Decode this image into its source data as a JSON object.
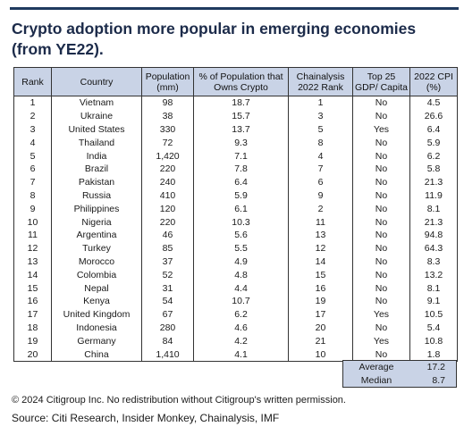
{
  "title": "Crypto adoption more popular in emerging economies (from YE22).",
  "table": {
    "headers": [
      "Rank",
      "Country",
      "Population (mm)",
      "% of Population that Owns Crypto",
      "Chainalysis 2022 Rank",
      "Top 25 GDP/ Capita",
      "2022 CPI (%)"
    ],
    "rows": [
      [
        "1",
        "Vietnam",
        "98",
        "18.7",
        "1",
        "No",
        "4.5"
      ],
      [
        "2",
        "Ukraine",
        "38",
        "15.7",
        "3",
        "No",
        "26.6"
      ],
      [
        "3",
        "United States",
        "330",
        "13.7",
        "5",
        "Yes",
        "6.4"
      ],
      [
        "4",
        "Thailand",
        "72",
        "9.3",
        "8",
        "No",
        "5.9"
      ],
      [
        "5",
        "India",
        "1,420",
        "7.1",
        "4",
        "No",
        "6.2"
      ],
      [
        "6",
        "Brazil",
        "220",
        "7.8",
        "7",
        "No",
        "5.8"
      ],
      [
        "7",
        "Pakistan",
        "240",
        "6.4",
        "6",
        "No",
        "21.3"
      ],
      [
        "8",
        "Russia",
        "410",
        "5.9",
        "9",
        "No",
        "11.9"
      ],
      [
        "9",
        "Philippines",
        "120",
        "6.1",
        "2",
        "No",
        "8.1"
      ],
      [
        "10",
        "Nigeria",
        "220",
        "10.3",
        "11",
        "No",
        "21.3"
      ],
      [
        "11",
        "Argentina",
        "46",
        "5.6",
        "13",
        "No",
        "94.8"
      ],
      [
        "12",
        "Turkey",
        "85",
        "5.5",
        "12",
        "No",
        "64.3"
      ],
      [
        "13",
        "Morocco",
        "37",
        "4.9",
        "14",
        "No",
        "8.3"
      ],
      [
        "14",
        "Colombia",
        "52",
        "4.8",
        "15",
        "No",
        "13.2"
      ],
      [
        "15",
        "Nepal",
        "31",
        "4.4",
        "16",
        "No",
        "8.1"
      ],
      [
        "16",
        "Kenya",
        "54",
        "10.7",
        "19",
        "No",
        "9.1"
      ],
      [
        "17",
        "United Kingdom",
        "67",
        "6.2",
        "17",
        "Yes",
        "10.5"
      ],
      [
        "18",
        "Indonesia",
        "280",
        "4.6",
        "20",
        "No",
        "5.4"
      ],
      [
        "19",
        "Germany",
        "84",
        "4.2",
        "21",
        "Yes",
        "10.8"
      ],
      [
        "20",
        "China",
        "1,410",
        "4.1",
        "10",
        "No",
        "1.8"
      ]
    ]
  },
  "stats": {
    "average_label": "Average",
    "average_value": "17.2",
    "median_label": "Median",
    "median_value": "8.7"
  },
  "footer": {
    "copyright": "© 2024 Citigroup Inc. No redistribution without Citigroup's written permission.",
    "source": "Source: Citi Research, Insider Monkey, Chainalysis, IMF"
  },
  "colors": {
    "header_fill": "#c9d3e6",
    "title": "#1c2b4a",
    "top_rule": "#1f3a5f"
  }
}
